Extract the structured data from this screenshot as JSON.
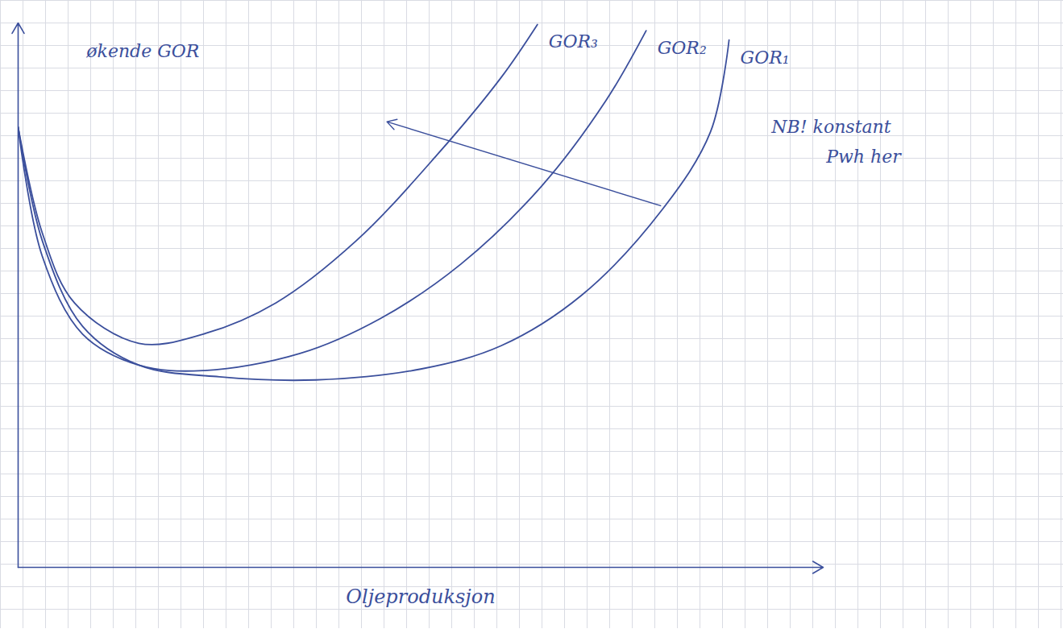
{
  "chart_data": {
    "type": "line",
    "x_label": "Oljeproduksjon",
    "xlim": [
      0,
      10
    ],
    "ylim": [
      0,
      7
    ],
    "xticks": [],
    "yticks": [],
    "tick_labels": false,
    "grid": true,
    "series": [
      {
        "name": "GOR₁",
        "color": "#3b4f9c",
        "x": [
          0,
          0.3,
          0.8,
          1.5,
          2.5,
          3.7,
          5.0,
          6.0,
          7.0,
          8.0,
          8.6,
          8.83
        ],
        "values": [
          5.66,
          4.2,
          3.1,
          2.6,
          2.45,
          2.41,
          2.55,
          2.85,
          3.5,
          4.6,
          5.6,
          6.78
        ]
      },
      {
        "name": "GOR₂",
        "color": "#3b4f9c",
        "x": [
          0,
          0.3,
          0.8,
          1.5,
          2.3,
          3.5,
          4.5,
          5.5,
          6.5,
          7.3,
          7.8
        ],
        "values": [
          5.66,
          4.0,
          3.0,
          2.6,
          2.53,
          2.75,
          3.2,
          3.9,
          4.9,
          6.0,
          6.9
        ]
      },
      {
        "name": "GOR₃",
        "color": "#3b4f9c",
        "x": [
          0,
          0.3,
          0.7,
          1.5,
          2.3,
          3.2,
          4.2,
          5.2,
          6.0,
          6.45
        ],
        "values": [
          5.66,
          4.3,
          3.4,
          2.88,
          3.0,
          3.4,
          4.2,
          5.3,
          6.3,
          6.98
        ]
      }
    ],
    "annotations": [
      {
        "text": "økende GOR",
        "x": 1.55,
        "y": 6.63,
        "arrow": [
          [
            7.98,
            4.65
          ],
          [
            4.58,
            5.73
          ]
        ]
      },
      {
        "text": "NB! konstant",
        "x": 10.1,
        "y": 5.66
      },
      {
        "text": "Pwh her",
        "x": 10.5,
        "y": 5.28
      }
    ]
  }
}
